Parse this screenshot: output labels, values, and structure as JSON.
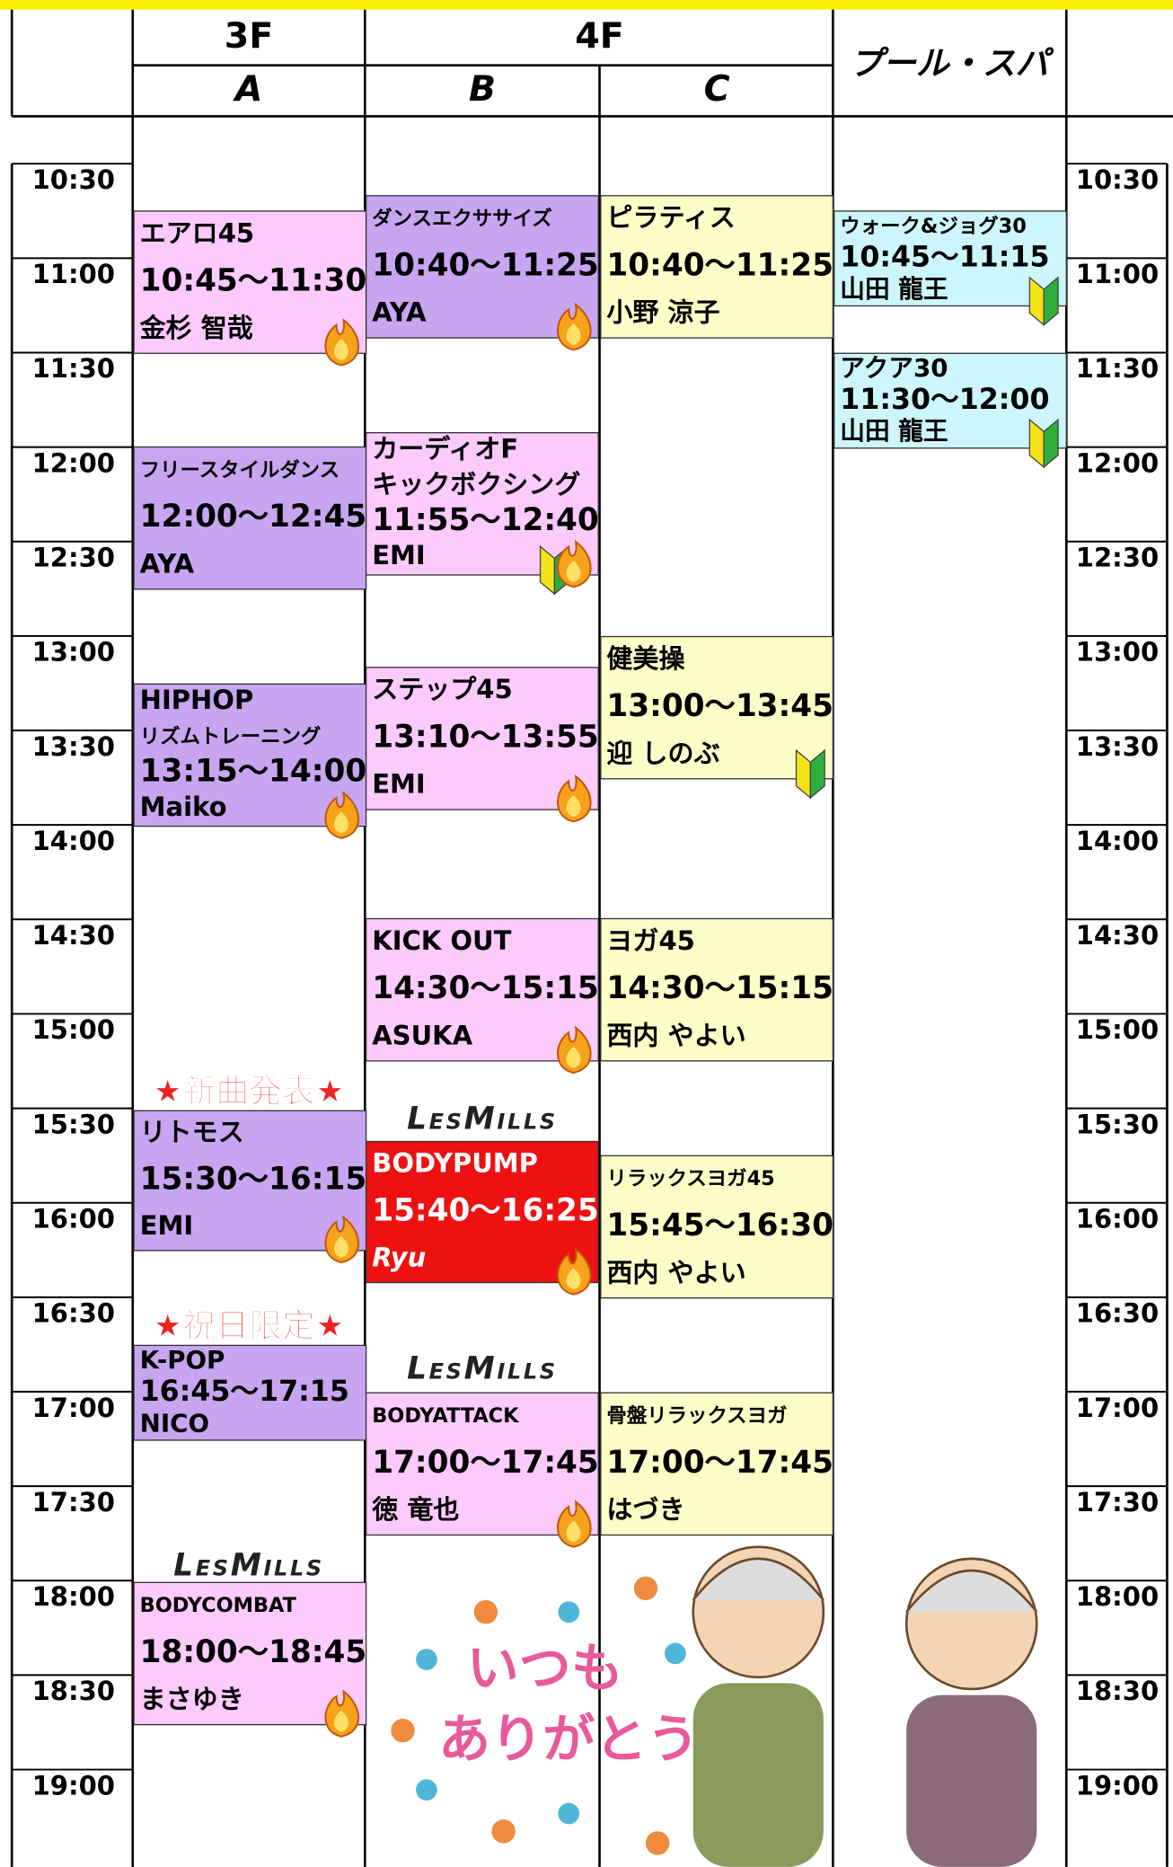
{
  "header": {
    "floors": [
      "3F",
      "4F"
    ],
    "columns": [
      "A",
      "B",
      "C"
    ],
    "pool": "プール・スパ"
  },
  "times": [
    "10:30",
    "11:00",
    "11:30",
    "12:00",
    "12:30",
    "13:00",
    "13:30",
    "14:00",
    "14:30",
    "15:00",
    "15:30",
    "16:00",
    "16:30",
    "17:00",
    "17:30",
    "18:00",
    "18:30",
    "19:00"
  ],
  "classes": [
    {
      "name": [
        "エアロ45"
      ],
      "time": "10:45〜11:30",
      "instructor": "金杉 智哉"
    },
    {
      "name": [
        "フリースタイルダンス"
      ],
      "time": "12:00〜12:45",
      "instructor": "AYA"
    },
    {
      "name": [
        "HIPHOP",
        "リズムトレーニング"
      ],
      "time": "13:15〜14:00",
      "instructor": "Maiko"
    },
    {
      "name": [
        "リトモス"
      ],
      "time": "15:30〜16:15",
      "instructor": "EMI"
    },
    {
      "name": [
        "K-POP"
      ],
      "time": "16:45〜17:15",
      "instructor": "NICO"
    },
    {
      "name": [
        "BODYCOMBAT"
      ],
      "time": "18:00〜18:45",
      "instructor": "まさゆき"
    },
    {
      "name": [
        "ダンスエクササイズ"
      ],
      "time": "10:40〜11:25",
      "instructor": "AYA"
    },
    {
      "name": [
        "カーディオF",
        "キックボクシング"
      ],
      "time": "11:55〜12:40",
      "instructor": "EMI"
    },
    {
      "name": [
        "ステップ45"
      ],
      "time": "13:10〜13:55",
      "instructor": "EMI"
    },
    {
      "name": [
        "KICK OUT"
      ],
      "time": "14:30〜15:15",
      "instructor": "ASUKA"
    },
    {
      "name": [
        "BODYPUMP"
      ],
      "time": "15:40〜16:25",
      "instructor": "Ryu"
    },
    {
      "name": [
        "BODYATTACK"
      ],
      "time": "17:00〜17:45",
      "instructor": "徳 竜也"
    },
    {
      "name": [
        "ピラティス"
      ],
      "time": "10:40〜11:25",
      "instructor": "小野 涼子"
    },
    {
      "name": [
        "健美操"
      ],
      "time": "13:00〜13:45",
      "instructor": "迎 しのぶ"
    },
    {
      "name": [
        "ヨガ45"
      ],
      "time": "14:30〜15:15",
      "instructor": "西内 やよい"
    },
    {
      "name": [
        "リラックスヨガ45"
      ],
      "time": "15:45〜16:30",
      "instructor": "西内 やよい"
    },
    {
      "name": [
        "骨盤リラックスヨガ"
      ],
      "time": "17:00〜17:45",
      "instructor": "はづき"
    },
    {
      "name": [
        "ウォーク&ジョグ30"
      ],
      "time": "10:45〜11:15",
      "instructor": "山田 龍王"
    },
    {
      "name": [
        "アクア30"
      ],
      "time": "11:30〜12:00",
      "instructor": "山田 龍王"
    }
  ],
  "banners": [
    "★新曲発表★",
    "★祝日限定★"
  ],
  "logo": "LesMills",
  "message": [
    "いつも",
    "ありがとう"
  ]
}
